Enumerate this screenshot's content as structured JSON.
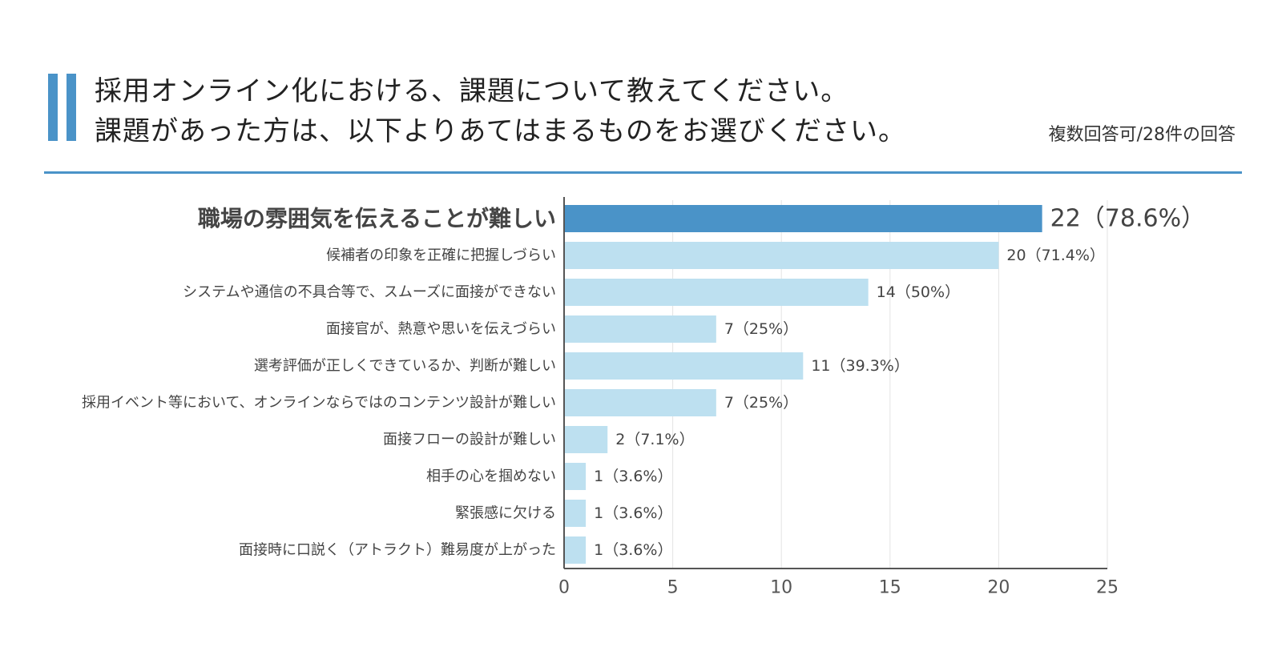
{
  "header": {
    "title_line1": "採用オンライン化における、課題について教えてください。",
    "title_line2": "課題があった方は、以下よりあてはまるものをお選びください。",
    "subtitle": "複数回答可/28件の回答"
  },
  "colors": {
    "accent": "#4a93c8",
    "bar_highlight": "#4a93c8",
    "bar_normal": "#bde0f0",
    "divider": "#4a93c8",
    "grid": "#e3e3e3",
    "axis": "#555555"
  },
  "chart_data": {
    "type": "bar",
    "orientation": "horizontal",
    "title": "採用オンライン化における、課題について教えてください。課題があった方は、以下よりあてはまるものをお選びください。",
    "xlabel": "",
    "ylabel": "",
    "xlim": [
      0,
      25
    ],
    "x_ticks": [
      "0",
      "5",
      "10",
      "15",
      "20",
      "25"
    ],
    "grid": "vertical",
    "highlighted_index": 0,
    "categories": [
      "職場の雰囲気を伝えることが難しい",
      "候補者の印象を正確に把握しづらい",
      "システムや通信の不具合等で、スムーズに面接ができない",
      "面接官が、熱意や思いを伝えづらい",
      "選考評価が正しくできているか、判断が難しい",
      "採用イベント等において、オンラインならではのコンテンツ設計が難しい",
      "面接フローの設計が難しい",
      "相手の心を掴めない",
      "緊張感に欠ける",
      "面接時に口説く（アトラクト）難易度が上がった"
    ],
    "values": [
      22,
      20,
      14,
      7,
      11,
      7,
      2,
      1,
      1,
      1
    ],
    "value_labels": [
      "22（78.6%）",
      "20（71.4%）",
      "14（50%）",
      "7（25%）",
      "11（39.3%）",
      "7（25%）",
      "2（7.1%）",
      "1（3.6%）",
      "1（3.6%）",
      "1（3.6%）"
    ]
  }
}
